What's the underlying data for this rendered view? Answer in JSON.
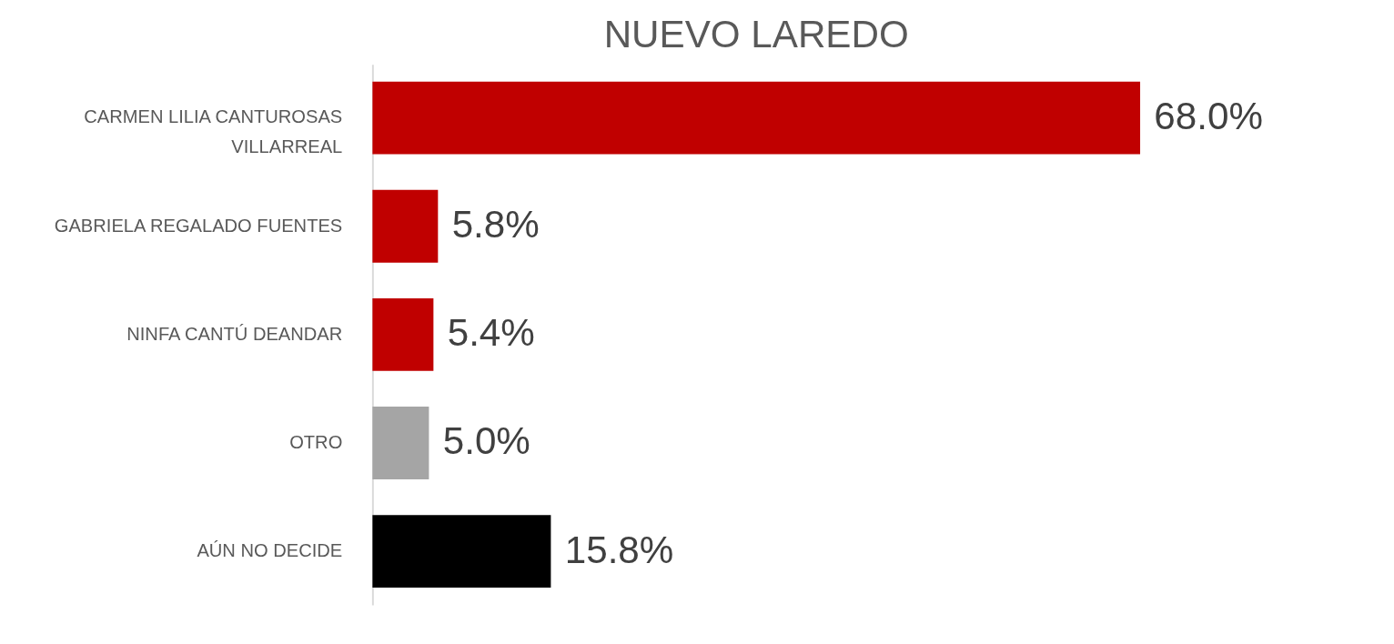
{
  "chart_data": {
    "type": "bar",
    "orientation": "horizontal",
    "title": "NUEVO LAREDO",
    "categories": [
      "CARMEN LILIA CANTUROSAS VILLARREAL",
      "GABRIELA REGALADO FUENTES",
      "NINFA CANTÚ DEANDAR",
      "OTRO",
      "AÚN NO DECIDE"
    ],
    "values": [
      68.0,
      5.8,
      5.4,
      5.0,
      15.8
    ],
    "colors": [
      "#c00000",
      "#c00000",
      "#c00000",
      "#a5a5a5",
      "#000000"
    ],
    "value_labels": [
      "68.0%",
      "5.8%",
      "5.4%",
      "5.0%",
      "15.8%"
    ]
  }
}
